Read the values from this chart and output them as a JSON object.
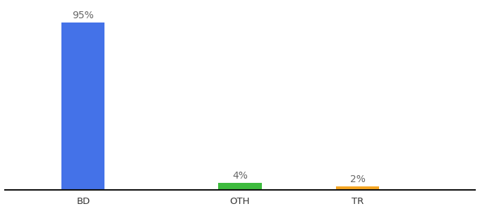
{
  "categories": [
    "BD",
    "OTH",
    "TR"
  ],
  "values": [
    95,
    4,
    2
  ],
  "bar_colors": [
    "#4472e8",
    "#3dbb3d",
    "#f5a623"
  ],
  "labels": [
    "95%",
    "4%",
    "2%"
  ],
  "ylim": [
    0,
    105
  ],
  "background_color": "#ffffff",
  "bar_width": 0.55,
  "label_fontsize": 10,
  "tick_fontsize": 9.5,
  "axis_line_color": "#111111",
  "x_positions": [
    1.0,
    3.0,
    4.5
  ],
  "xlim": [
    0,
    6
  ]
}
